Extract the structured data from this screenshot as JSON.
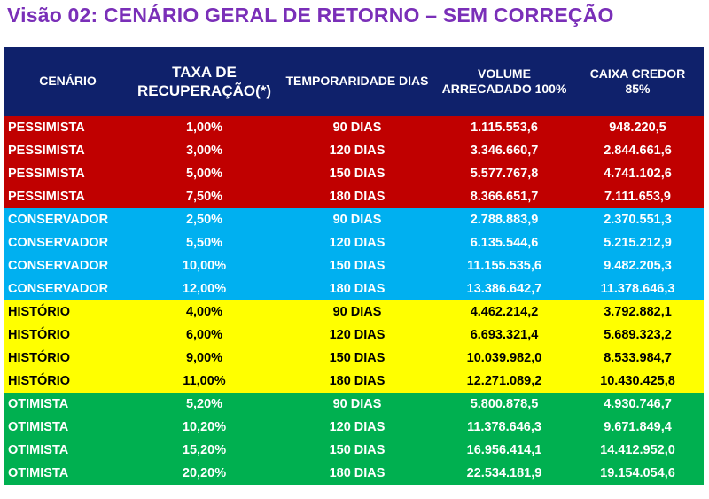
{
  "title": "Visão 02: CENÁRIO GERAL DE RETORNO – SEM CORREÇÃO",
  "colors": {
    "title": "#7a2fb8",
    "header_bg": "#0f216b",
    "pessimista": "#c00000",
    "conservador": "#00b0f0",
    "historio": "#ffff00",
    "otimista": "#00b050"
  },
  "table": {
    "headers": {
      "cenario": "CENÁRIO",
      "taxa_1": "TAXA DE",
      "taxa_2": "RECUPERAÇÃO(*)",
      "temporaridade": "TEMPORARIDADE DIAS",
      "volume_1": "VOLUME",
      "volume_2": "ARRECADADO  100%",
      "caixa_1": "CAIXA CREDOR",
      "caixa_2": "85%"
    },
    "rows": [
      {
        "group": "pessimista",
        "cenario": "PESSIMISTA",
        "taxa": "1,00%",
        "dias": "90 DIAS",
        "volume": "1.115.553,6",
        "caixa": "948.220,5"
      },
      {
        "group": "pessimista",
        "cenario": "PESSIMISTA",
        "taxa": "3,00%",
        "dias": "120 DIAS",
        "volume": "3.346.660,7",
        "caixa": "2.844.661,6"
      },
      {
        "group": "pessimista",
        "cenario": "PESSIMISTA",
        "taxa": "5,00%",
        "dias": "150 DIAS",
        "volume": "5.577.767,8",
        "caixa": "4.741.102,6"
      },
      {
        "group": "pessimista",
        "cenario": "PESSIMISTA",
        "taxa": "7,50%",
        "dias": "180 DIAS",
        "volume": "8.366.651,7",
        "caixa": "7.111.653,9"
      },
      {
        "group": "conservador",
        "cenario": "CONSERVADOR",
        "taxa": "2,50%",
        "dias": "90 DIAS",
        "volume": "2.788.883,9",
        "caixa": "2.370.551,3"
      },
      {
        "group": "conservador",
        "cenario": "CONSERVADOR",
        "taxa": "5,50%",
        "dias": "120 DIAS",
        "volume": "6.135.544,6",
        "caixa": "5.215.212,9"
      },
      {
        "group": "conservador",
        "cenario": "CONSERVADOR",
        "taxa": "10,00%",
        "dias": "150 DIAS",
        "volume": "11.155.535,6",
        "caixa": "9.482.205,3"
      },
      {
        "group": "conservador",
        "cenario": "CONSERVADOR",
        "taxa": "12,00%",
        "dias": "180 DIAS",
        "volume": "13.386.642,7",
        "caixa": "11.378.646,3"
      },
      {
        "group": "historio",
        "cenario": "HISTÓRIO",
        "taxa": "4,00%",
        "dias": "90 DIAS",
        "volume": "4.462.214,2",
        "caixa": "3.792.882,1"
      },
      {
        "group": "historio",
        "cenario": "HISTÓRIO",
        "taxa": "6,00%",
        "dias": "120 DIAS",
        "volume": "6.693.321,4",
        "caixa": "5.689.323,2"
      },
      {
        "group": "historio",
        "cenario": "HISTÓRIO",
        "taxa": "9,00%",
        "dias": "150 DIAS",
        "volume": "10.039.982,0",
        "caixa": "8.533.984,7"
      },
      {
        "group": "historio",
        "cenario": "HISTÓRIO",
        "taxa": "11,00%",
        "dias": "180 DIAS",
        "volume": "12.271.089,2",
        "caixa": "10.430.425,8"
      },
      {
        "group": "otimista",
        "cenario": "OTIMISTA",
        "taxa": "5,20%",
        "dias": "90 DIAS",
        "volume": "5.800.878,5",
        "caixa": "4.930.746,7"
      },
      {
        "group": "otimista",
        "cenario": "OTIMISTA",
        "taxa": "10,20%",
        "dias": "120 DIAS",
        "volume": "11.378.646,3",
        "caixa": "9.671.849,4"
      },
      {
        "group": "otimista",
        "cenario": "OTIMISTA",
        "taxa": "15,20%",
        "dias": "150 DIAS",
        "volume": "16.956.414,1",
        "caixa": "14.412.952,0"
      },
      {
        "group": "otimista",
        "cenario": "OTIMISTA",
        "taxa": "20,20%",
        "dias": "180 DIAS",
        "volume": "22.534.181,9",
        "caixa": "19.154.054,6"
      }
    ]
  }
}
